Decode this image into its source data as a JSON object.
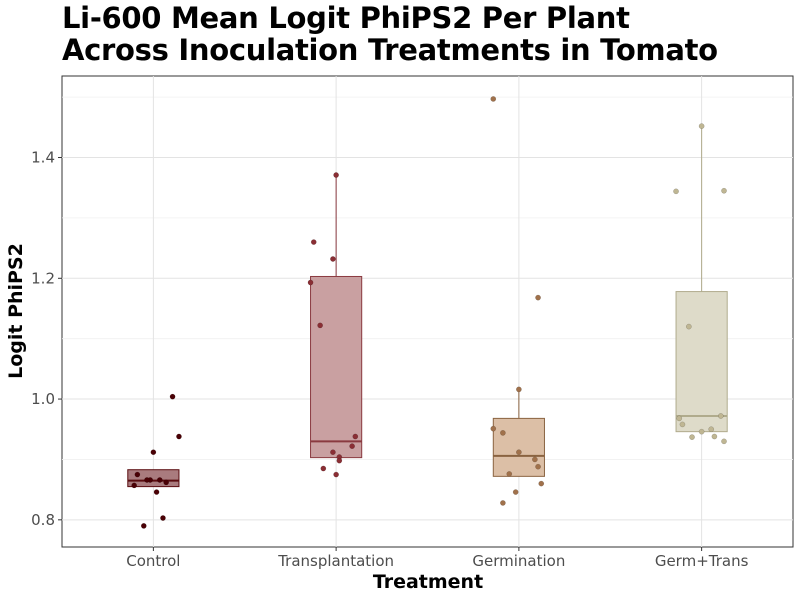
{
  "title_lines": [
    "Li-600 Mean Logit PhiPS2 Per Plant",
    "Across Inoculation Treatments in Tomato"
  ],
  "chart_data": {
    "type": "box",
    "title": "Li-600 Mean Logit PhiPS2 Per Plant Across Inoculation Treatments in Tomato",
    "xlabel": "Treatment",
    "ylabel": "Logit PhiPS2",
    "ylim": [
      0.755,
      1.535
    ],
    "yticks": [
      0.8,
      1.0,
      1.2,
      1.4
    ],
    "ytick_labels": [
      "0.8",
      "1.0",
      "1.2",
      "1.4"
    ],
    "grid": true,
    "legend": "none",
    "categories": [
      "Control",
      "Transplantation",
      "Germination",
      "Germ+Trans"
    ],
    "boxes": [
      {
        "name": "Control",
        "whisker_low": 0.855,
        "q1": 0.855,
        "median": 0.865,
        "q3": 0.883,
        "whisker_high": 0.883,
        "fill": "#a97b7e",
        "stroke": "#5a0c10",
        "point_color": "#4a0005",
        "points": [
          [
            -0.25,
            0.875
          ],
          [
            -0.3,
            0.857
          ],
          [
            -0.15,
            0.79
          ],
          [
            -0.05,
            0.866
          ],
          [
            0.0,
            0.912
          ],
          [
            -0.1,
            0.866
          ],
          [
            0.1,
            0.866
          ],
          [
            0.2,
            0.862
          ],
          [
            0.05,
            0.846
          ],
          [
            0.15,
            0.803
          ],
          [
            0.3,
            1.004
          ],
          [
            0.4,
            0.938
          ]
        ]
      },
      {
        "name": "Transplantation",
        "whisker_low": 0.903,
        "q1": 0.903,
        "median": 0.93,
        "q3": 1.203,
        "whisker_high": 1.371,
        "fill": "#c9a0a1",
        "stroke": "#8a3a40",
        "point_color": "#8a2e34",
        "points": [
          [
            -0.4,
            1.193
          ],
          [
            -0.35,
            1.26
          ],
          [
            -0.25,
            1.122
          ],
          [
            -0.2,
            0.885
          ],
          [
            -0.05,
            1.232
          ],
          [
            -0.05,
            0.912
          ],
          [
            0.0,
            1.371
          ],
          [
            0.0,
            0.875
          ],
          [
            0.05,
            0.904
          ],
          [
            0.05,
            0.898
          ],
          [
            0.25,
            0.922
          ],
          [
            0.3,
            0.938
          ]
        ]
      },
      {
        "name": "Germination",
        "whisker_low": 0.872,
        "q1": 0.872,
        "median": 0.906,
        "q3": 0.968,
        "whisker_high": 1.016,
        "fill": "#dcbfa6",
        "stroke": "#8a6340",
        "point_color": "#a0714b",
        "points": [
          [
            -0.4,
            0.951
          ],
          [
            -0.4,
            1.497
          ],
          [
            -0.25,
            0.944
          ],
          [
            -0.25,
            0.828
          ],
          [
            -0.15,
            0.876
          ],
          [
            -0.05,
            0.846
          ],
          [
            0.0,
            1.016
          ],
          [
            0.0,
            0.912
          ],
          [
            0.25,
            0.9
          ],
          [
            0.3,
            0.888
          ],
          [
            0.35,
            0.86
          ],
          [
            0.3,
            1.168
          ]
        ]
      },
      {
        "name": "Germ+Trans",
        "whisker_low": 0.946,
        "q1": 0.946,
        "median": 0.972,
        "q3": 1.178,
        "whisker_high": 1.452,
        "fill": "#dedbc9",
        "stroke": "#b0ab8c",
        "point_color": "#bfb693",
        "points": [
          [
            -0.4,
            1.344
          ],
          [
            -0.35,
            0.968
          ],
          [
            -0.3,
            0.958
          ],
          [
            -0.2,
            1.12
          ],
          [
            -0.15,
            0.937
          ],
          [
            0.0,
            1.452
          ],
          [
            0.0,
            0.946
          ],
          [
            0.15,
            0.95
          ],
          [
            0.2,
            0.938
          ],
          [
            0.35,
            1.345
          ],
          [
            0.3,
            0.972
          ],
          [
            0.35,
            0.93
          ]
        ]
      }
    ]
  }
}
